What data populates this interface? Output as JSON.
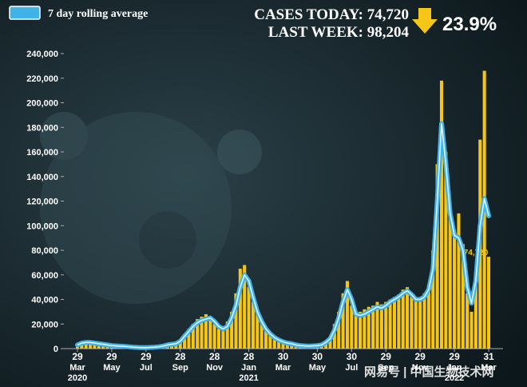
{
  "chart_data": {
    "type": "bar",
    "annotations": [
      "CASES TODAY: 74,720",
      "LAST WEEK: 98,204",
      "23.9%"
    ],
    "watermark": "网易号 | 中国生物技术网",
    "categories": [
      "29 Mar 2020",
      null,
      null,
      null,
      null,
      null,
      null,
      null,
      "29 May",
      null,
      null,
      null,
      null,
      null,
      null,
      null,
      "29 Jul",
      null,
      null,
      null,
      null,
      null,
      null,
      null,
      "28 Sep",
      null,
      null,
      null,
      null,
      null,
      null,
      null,
      "28 Nov",
      null,
      null,
      null,
      null,
      null,
      null,
      null,
      "28 Jan 2021",
      null,
      null,
      null,
      null,
      null,
      null,
      null,
      "30 Mar",
      null,
      null,
      null,
      null,
      null,
      null,
      null,
      "30 May",
      null,
      null,
      null,
      null,
      null,
      null,
      null,
      "30 Jul",
      null,
      null,
      null,
      null,
      null,
      null,
      null,
      "29 Sep",
      null,
      null,
      null,
      null,
      null,
      null,
      null,
      "29 Nov",
      null,
      null,
      null,
      null,
      null,
      null,
      null,
      "29 Jan 2022",
      null,
      null,
      null,
      null,
      null,
      null,
      null,
      "31 Mar"
    ],
    "series": [
      {
        "type": "bar",
        "color": "#f5c518",
        "values": [
          4000,
          5000,
          6000,
          5000,
          5000,
          4000,
          3000,
          3000,
          3000,
          2000,
          2000,
          2000,
          1500,
          1000,
          1000,
          1000,
          1000,
          1000,
          1500,
          2000,
          3000,
          4000,
          4000,
          5000,
          7000,
          12000,
          16000,
          20000,
          24000,
          26000,
          28000,
          26000,
          20000,
          16000,
          18000,
          22000,
          30000,
          45000,
          65000,
          68000,
          50000,
          38000,
          28000,
          20000,
          15000,
          11000,
          8000,
          6000,
          5000,
          4000,
          3000,
          3000,
          2000,
          2000,
          2000,
          3000,
          3000,
          4000,
          6000,
          10000,
          20000,
          30000,
          45000,
          55000,
          35000,
          28000,
          30000,
          32000,
          34000,
          35000,
          38000,
          36000,
          38000,
          40000,
          42000,
          44000,
          48000,
          50000,
          42000,
          40000,
          42000,
          45000,
          52000,
          80000,
          150000,
          218000,
          160000,
          115000,
          95000,
          110000,
          85000,
          45000,
          30000,
          60000,
          170000,
          226000,
          74720
        ],
        "value_labels": [
          null,
          null,
          null,
          null,
          null,
          null,
          null,
          null,
          null,
          null,
          null,
          null,
          null,
          null,
          null,
          null,
          null,
          null,
          null,
          null,
          null,
          null,
          null,
          null,
          null,
          null,
          null,
          null,
          null,
          null,
          null,
          null,
          null,
          null,
          null,
          null,
          null,
          null,
          null,
          null,
          null,
          null,
          null,
          null,
          null,
          null,
          null,
          null,
          null,
          null,
          null,
          null,
          null,
          null,
          null,
          null,
          null,
          null,
          null,
          null,
          null,
          null,
          null,
          null,
          null,
          null,
          null,
          null,
          null,
          null,
          null,
          null,
          null,
          null,
          null,
          null,
          null,
          null,
          null,
          null,
          null,
          null,
          null,
          null,
          null,
          null,
          null,
          null,
          null,
          null,
          null,
          null,
          null,
          null,
          null,
          null,
          "74,720"
        ]
      },
      {
        "type": "line",
        "name": "7 day rolling average",
        "color": "#3fb2e8",
        "values": [
          3000,
          4500,
          5000,
          5000,
          4500,
          4000,
          3500,
          3000,
          2500,
          2200,
          2000,
          1800,
          1500,
          1200,
          1000,
          800,
          800,
          1000,
          1200,
          1500,
          2000,
          3000,
          3500,
          4000,
          6000,
          10000,
          14000,
          18000,
          21000,
          23000,
          24000,
          25000,
          22000,
          18000,
          16000,
          18000,
          25000,
          35000,
          50000,
          60000,
          55000,
          42000,
          30000,
          22000,
          16000,
          12000,
          9000,
          7000,
          5500,
          4500,
          4000,
          3000,
          2500,
          2200,
          2000,
          2200,
          2500,
          3000,
          5000,
          8000,
          15000,
          25000,
          38000,
          48000,
          40000,
          28000,
          27000,
          28000,
          30000,
          32000,
          34000,
          33000,
          35000,
          38000,
          40000,
          42000,
          45000,
          47000,
          44000,
          40000,
          40000,
          42000,
          48000,
          65000,
          120000,
          183000,
          150000,
          110000,
          92000,
          90000,
          80000,
          50000,
          37000,
          55000,
          100000,
          122000,
          108000
        ]
      }
    ],
    "ylim": [
      0,
      240000
    ],
    "yticks": [
      0,
      {
        "value": 20000,
        "label": "20,000"
      },
      {
        "value": 40000,
        "label": "40,000"
      },
      {
        "value": 60000,
        "label": "60,000"
      },
      {
        "value": 80000,
        "label": "80,000"
      },
      {
        "value": 100000,
        "label": "100,000"
      },
      {
        "value": 120000,
        "label": "120,000"
      },
      {
        "value": 140000,
        "label": "140,000"
      },
      {
        "value": 160000,
        "label": "160,000"
      },
      {
        "value": 180000,
        "label": "180,000"
      },
      {
        "value": 200000,
        "label": "200,000"
      },
      {
        "value": 220000,
        "label": "220,000"
      },
      {
        "value": 240000,
        "label": "240,000"
      }
    ],
    "grid": false
  }
}
